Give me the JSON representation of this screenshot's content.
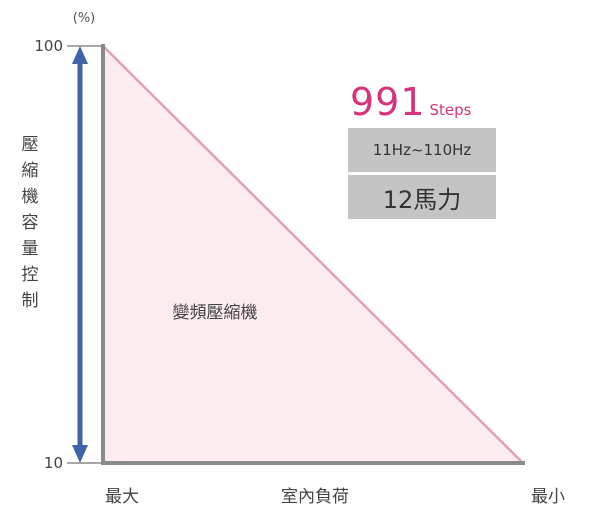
{
  "chart_data": {
    "type": "area",
    "unit_label": "(%)",
    "ylabel": "壓縮機容量控制",
    "xlabel": "室內負荷",
    "x_categories": [
      "最大",
      "最小"
    ],
    "y_ticks": [
      100,
      10
    ],
    "ylim": [
      10,
      100
    ],
    "series": [
      {
        "x": [
          "最大",
          "最小"
        ],
        "y": [
          100,
          10
        ]
      }
    ],
    "area_label": "變頻壓縮機",
    "colors": {
      "line": "#e0a0b6",
      "fill": "#fcecef",
      "arrow": "#3e63a8",
      "axis": "#8a8a8a"
    }
  },
  "info": {
    "steps_number": "991",
    "steps_unit": "Steps",
    "freq_range": "11Hz~110Hz",
    "horsepower": "12馬力",
    "accent_color": "#d6337a"
  }
}
